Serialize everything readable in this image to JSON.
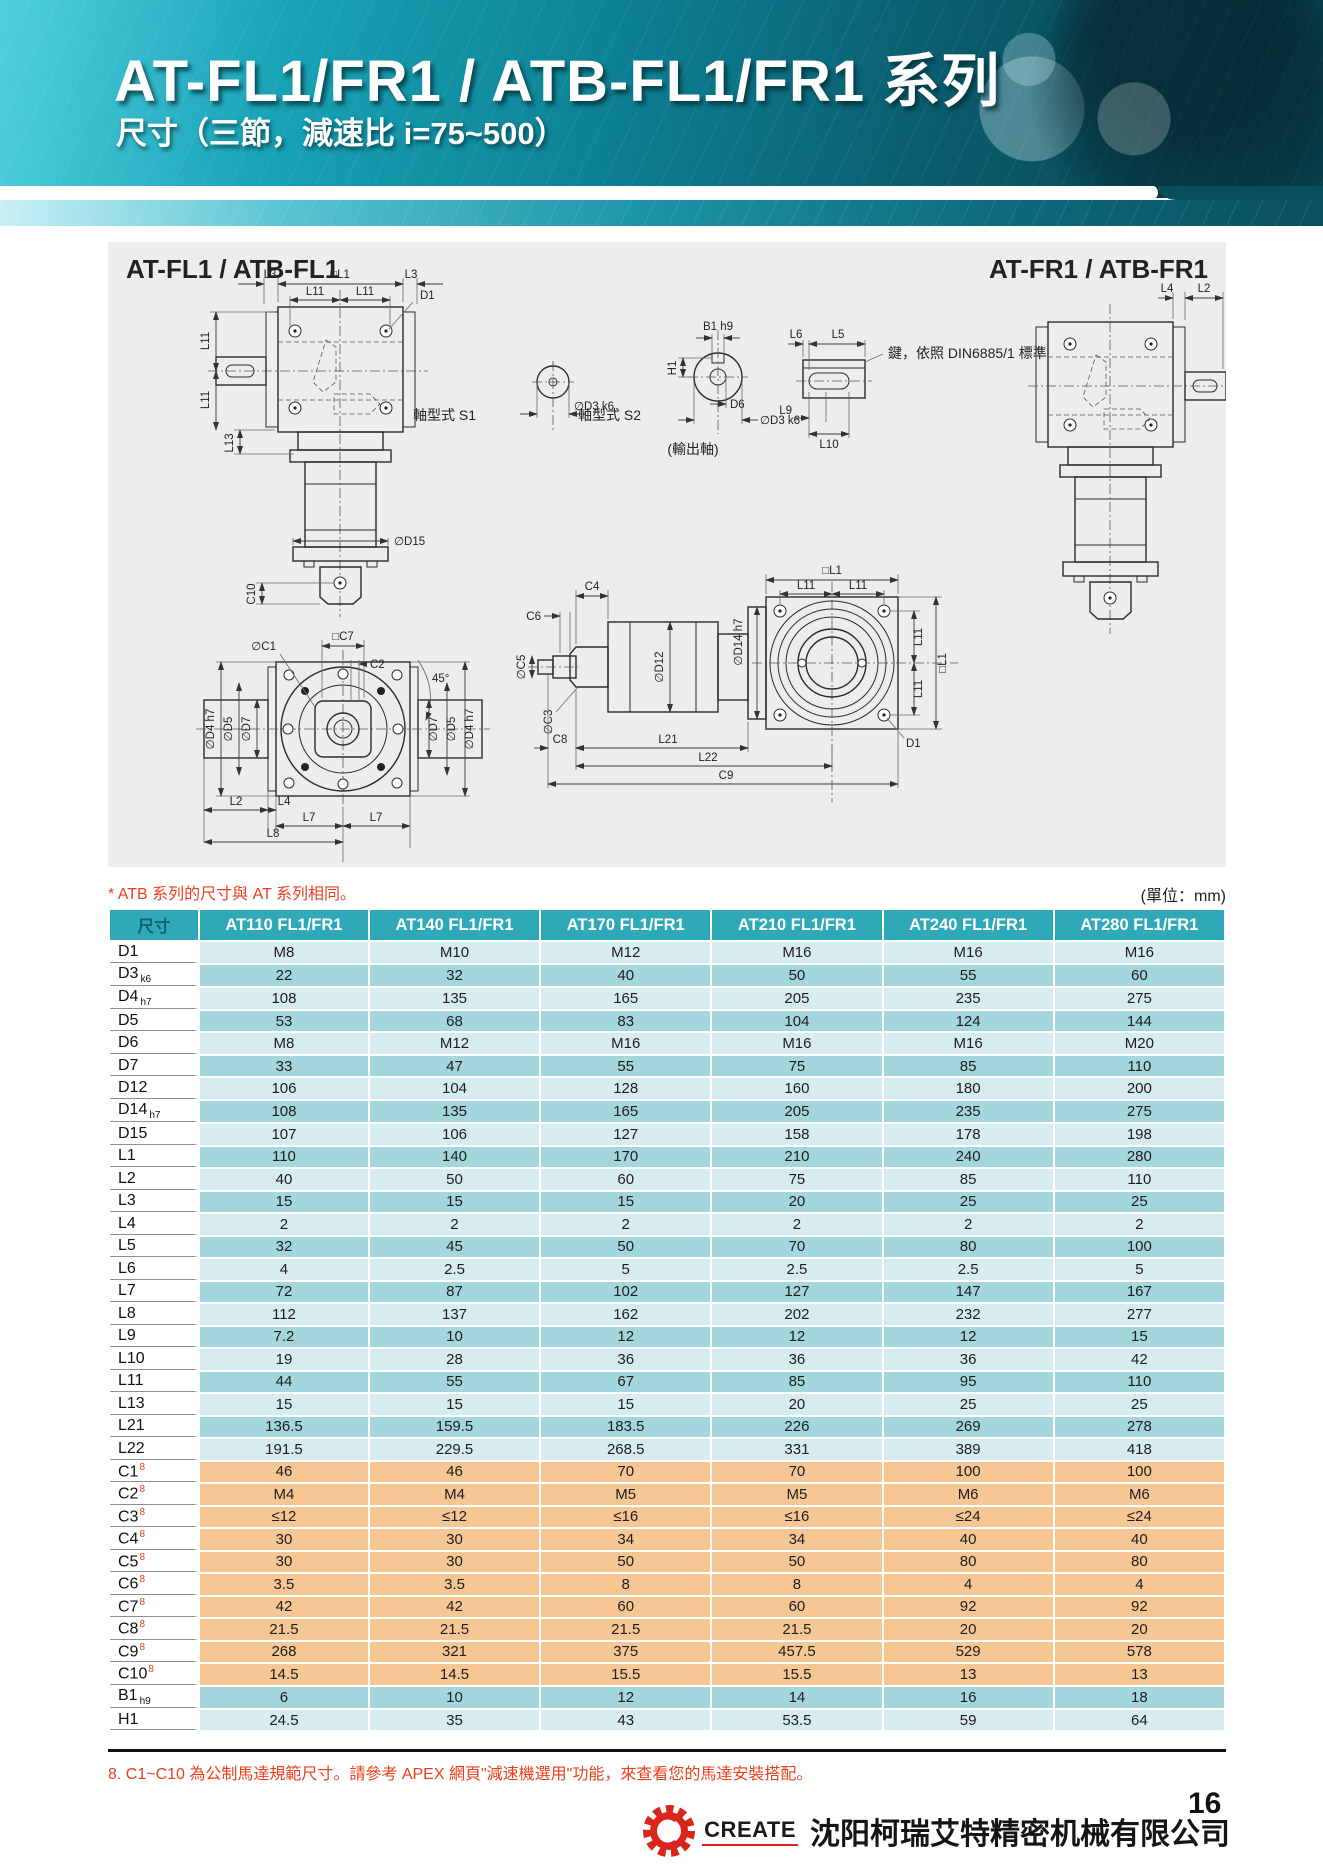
{
  "page": {
    "title": "AT-FL1/FR1 / ATB-FL1/FR1 系列",
    "subtitle": "尺寸（三節，減速比 i=75~500）",
    "page_number": "16"
  },
  "colors": {
    "accent": "#2FA8B8",
    "row-light": "#D7ECEF",
    "row-dark": "#A4D6DD",
    "row-orange": "#F6C795",
    "note-red": "#E8401C",
    "logo-red": "#D9251C",
    "panel-gray": "#EDEDED"
  },
  "drawings": {
    "left_title": "AT-FL1 / ATB-FL1",
    "right_title": "AT-FR1 / ATB-FR1",
    "labels": {
      "l3": "L3",
      "l1sq": "□L1",
      "l11": "L11",
      "d1": "D1",
      "l13": "L13",
      "d15": "∅D15",
      "c10": "C10",
      "c7sq": "□C7",
      "c1dia": "∅C1",
      "c2": "C2",
      "deg45": "45°",
      "d4": "∅D4 h7",
      "d5": "∅D5",
      "d7": "∅D7",
      "l2": "L2",
      "l4": "L4",
      "l7": "L7",
      "l8": "L8",
      "s1_label": "軸型式  S1",
      "s2_label": "軸型式  S2",
      "d3k6": "∅D3 k6",
      "output_shaft": "(輸出軸)",
      "b1": "B1 h9",
      "h1_dim": "H1",
      "d6": "D6",
      "l6": "L6",
      "l5": "L5",
      "l9": "L9",
      "l10": "L10",
      "key_note": "鍵，依照 DIN6885/1 標準",
      "c4": "C4",
      "c6": "C6",
      "c5dia": "∅C5",
      "c3dia": "∅C3",
      "d12": "∅D12",
      "d14": "∅D14 h7",
      "c8": "C8",
      "l21": "L21",
      "l22": "L22",
      "c9": "C9"
    }
  },
  "notes": {
    "atb_note": "* ATB 系列的尺寸與 AT 系列相同。",
    "units": "(單位：mm)",
    "footer_note": "8. C1~C10 為公制馬達規範尺寸。請參考 APEX 網頁\"減速機選用\"功能，來查看您的馬達安裝搭配。"
  },
  "table": {
    "columns": [
      "尺寸",
      "AT110 FL1/FR1",
      "AT140 FL1/FR1",
      "AT170 FL1/FR1",
      "AT210 FL1/FR1",
      "AT240 FL1/FR1",
      "AT280 FL1/FR1"
    ],
    "rows": [
      {
        "label": "D1",
        "sub": "",
        "sup": "",
        "band": "light",
        "values": [
          "M8",
          "M10",
          "M12",
          "M16",
          "M16",
          "M16"
        ]
      },
      {
        "label": "D3",
        "sub": "k6",
        "sup": "",
        "band": "dark",
        "values": [
          "22",
          "32",
          "40",
          "50",
          "55",
          "60"
        ]
      },
      {
        "label": "D4",
        "sub": "h7",
        "sup": "",
        "band": "light",
        "values": [
          "108",
          "135",
          "165",
          "205",
          "235",
          "275"
        ]
      },
      {
        "label": "D5",
        "sub": "",
        "sup": "",
        "band": "dark",
        "values": [
          "53",
          "68",
          "83",
          "104",
          "124",
          "144"
        ]
      },
      {
        "label": "D6",
        "sub": "",
        "sup": "",
        "band": "light",
        "values": [
          "M8",
          "M12",
          "M16",
          "M16",
          "M16",
          "M20"
        ]
      },
      {
        "label": "D7",
        "sub": "",
        "sup": "",
        "band": "dark",
        "values": [
          "33",
          "47",
          "55",
          "75",
          "85",
          "110"
        ]
      },
      {
        "label": "D12",
        "sub": "",
        "sup": "",
        "band": "light",
        "values": [
          "106",
          "104",
          "128",
          "160",
          "180",
          "200"
        ]
      },
      {
        "label": "D14",
        "sub": "h7",
        "sup": "",
        "band": "dark",
        "values": [
          "108",
          "135",
          "165",
          "205",
          "235",
          "275"
        ]
      },
      {
        "label": "D15",
        "sub": "",
        "sup": "",
        "band": "light",
        "values": [
          "107",
          "106",
          "127",
          "158",
          "178",
          "198"
        ]
      },
      {
        "label": "L1",
        "sub": "",
        "sup": "",
        "band": "dark",
        "values": [
          "110",
          "140",
          "170",
          "210",
          "240",
          "280"
        ]
      },
      {
        "label": "L2",
        "sub": "",
        "sup": "",
        "band": "light",
        "values": [
          "40",
          "50",
          "60",
          "75",
          "85",
          "110"
        ]
      },
      {
        "label": "L3",
        "sub": "",
        "sup": "",
        "band": "dark",
        "values": [
          "15",
          "15",
          "15",
          "20",
          "25",
          "25"
        ]
      },
      {
        "label": "L4",
        "sub": "",
        "sup": "",
        "band": "light",
        "values": [
          "2",
          "2",
          "2",
          "2",
          "2",
          "2"
        ]
      },
      {
        "label": "L5",
        "sub": "",
        "sup": "",
        "band": "dark",
        "values": [
          "32",
          "45",
          "50",
          "70",
          "80",
          "100"
        ]
      },
      {
        "label": "L6",
        "sub": "",
        "sup": "",
        "band": "light",
        "values": [
          "4",
          "2.5",
          "5",
          "2.5",
          "2.5",
          "5"
        ]
      },
      {
        "label": "L7",
        "sub": "",
        "sup": "",
        "band": "dark",
        "values": [
          "72",
          "87",
          "102",
          "127",
          "147",
          "167"
        ]
      },
      {
        "label": "L8",
        "sub": "",
        "sup": "",
        "band": "light",
        "values": [
          "112",
          "137",
          "162",
          "202",
          "232",
          "277"
        ]
      },
      {
        "label": "L9",
        "sub": "",
        "sup": "",
        "band": "dark",
        "values": [
          "7.2",
          "10",
          "12",
          "12",
          "12",
          "15"
        ]
      },
      {
        "label": "L10",
        "sub": "",
        "sup": "",
        "band": "light",
        "values": [
          "19",
          "28",
          "36",
          "36",
          "36",
          "42"
        ]
      },
      {
        "label": "L11",
        "sub": "",
        "sup": "",
        "band": "dark",
        "values": [
          "44",
          "55",
          "67",
          "85",
          "95",
          "110"
        ]
      },
      {
        "label": "L13",
        "sub": "",
        "sup": "",
        "band": "light",
        "values": [
          "15",
          "15",
          "15",
          "20",
          "25",
          "25"
        ]
      },
      {
        "label": "L21",
        "sub": "",
        "sup": "",
        "band": "dark",
        "values": [
          "136.5",
          "159.5",
          "183.5",
          "226",
          "269",
          "278"
        ]
      },
      {
        "label": "L22",
        "sub": "",
        "sup": "",
        "band": "light",
        "values": [
          "191.5",
          "229.5",
          "268.5",
          "331",
          "389",
          "418"
        ]
      },
      {
        "label": "C1",
        "sub": "",
        "sup": "8",
        "band": "orange",
        "values": [
          "46",
          "46",
          "70",
          "70",
          "100",
          "100"
        ]
      },
      {
        "label": "C2",
        "sub": "",
        "sup": "8",
        "band": "orange",
        "values": [
          "M4",
          "M4",
          "M5",
          "M5",
          "M6",
          "M6"
        ]
      },
      {
        "label": "C3",
        "sub": "",
        "sup": "8",
        "band": "orange",
        "values": [
          "≤12",
          "≤12",
          "≤16",
          "≤16",
          "≤24",
          "≤24"
        ]
      },
      {
        "label": "C4",
        "sub": "",
        "sup": "8",
        "band": "orange",
        "values": [
          "30",
          "30",
          "34",
          "34",
          "40",
          "40"
        ]
      },
      {
        "label": "C5",
        "sub": "",
        "sup": "8",
        "band": "orange",
        "values": [
          "30",
          "30",
          "50",
          "50",
          "80",
          "80"
        ]
      },
      {
        "label": "C6",
        "sub": "",
        "sup": "8",
        "band": "orange",
        "values": [
          "3.5",
          "3.5",
          "8",
          "8",
          "4",
          "4"
        ]
      },
      {
        "label": "C7",
        "sub": "",
        "sup": "8",
        "band": "orange",
        "values": [
          "42",
          "42",
          "60",
          "60",
          "92",
          "92"
        ]
      },
      {
        "label": "C8",
        "sub": "",
        "sup": "8",
        "band": "orange",
        "values": [
          "21.5",
          "21.5",
          "21.5",
          "21.5",
          "20",
          "20"
        ]
      },
      {
        "label": "C9",
        "sub": "",
        "sup": "8",
        "band": "orange",
        "values": [
          "268",
          "321",
          "375",
          "457.5",
          "529",
          "578"
        ]
      },
      {
        "label": "C10",
        "sub": "",
        "sup": "8",
        "band": "orange",
        "values": [
          "14.5",
          "14.5",
          "15.5",
          "15.5",
          "13",
          "13"
        ]
      },
      {
        "label": "B1",
        "sub": "h9",
        "sup": "",
        "band": "dark",
        "values": [
          "6",
          "10",
          "12",
          "14",
          "16",
          "18"
        ]
      },
      {
        "label": "H1",
        "sub": "",
        "sup": "",
        "band": "light",
        "values": [
          "24.5",
          "35",
          "43",
          "53.5",
          "59",
          "64"
        ]
      }
    ]
  },
  "footer": {
    "logo_text": "CREATE",
    "company": "沈阳柯瑞艾特精密机械有限公司"
  }
}
